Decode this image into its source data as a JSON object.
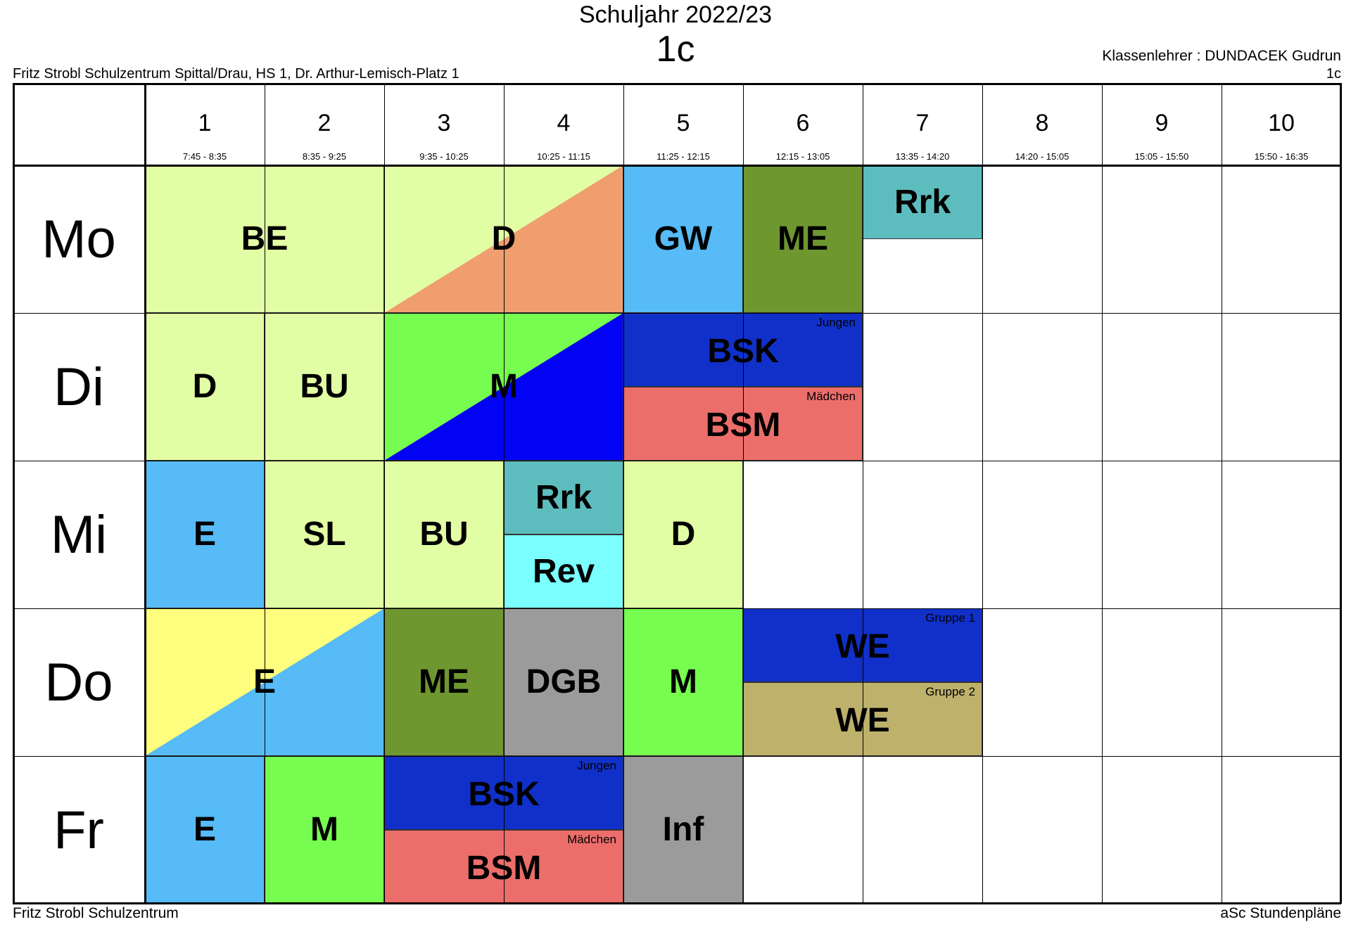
{
  "header": {
    "year": "Schuljahr 2022/23",
    "class_name": "1c",
    "school_address": "Fritz Strobl Schulzentrum Spittal/Drau, HS 1, Dr. Arthur-Lemisch-Platz 1",
    "teacher": "Klassenlehrer : DUNDACEK Gudrun",
    "class_right": "1c"
  },
  "footer": {
    "left": "Fritz Strobl Schulzentrum",
    "right": "aSc Stundenpläne"
  },
  "periods": [
    {
      "num": "1",
      "time": "7:45 - 8:35"
    },
    {
      "num": "2",
      "time": "8:35 - 9:25"
    },
    {
      "num": "3",
      "time": "9:35 - 10:25"
    },
    {
      "num": "4",
      "time": "10:25 - 11:15"
    },
    {
      "num": "5",
      "time": "11:25 - 12:15"
    },
    {
      "num": "6",
      "time": "12:15 - 13:05"
    },
    {
      "num": "7",
      "time": "13:35 - 14:20"
    },
    {
      "num": "8",
      "time": "14:20 - 15:05"
    },
    {
      "num": "9",
      "time": "15:05 - 15:50"
    },
    {
      "num": "10",
      "time": "15:50 - 16:35"
    }
  ],
  "days": [
    "Mo",
    "Di",
    "Mi",
    "Do",
    "Fr"
  ],
  "colors": {
    "lime": "#e2fea4",
    "orange": "#f09e6e",
    "sky": "#56bbf6",
    "olive": "#6f972f",
    "teal": "#5dbdbe",
    "green": "#77fd4f",
    "blue": "#0202f4",
    "navy": "#1030c9",
    "salmon": "#ec6e6b",
    "cyan": "#7afefe",
    "yellow": "#feff7e",
    "gray": "#9b9b9b",
    "khaki": "#beb16c"
  },
  "lessons": [
    {
      "day": 0,
      "start": 0,
      "span": 2,
      "half": "full",
      "subject": "BE",
      "color": "lime"
    },
    {
      "day": 0,
      "start": 2,
      "span": 2,
      "half": "full",
      "subject": "D",
      "color": "lime",
      "color2": "orange"
    },
    {
      "day": 0,
      "start": 4,
      "span": 1,
      "half": "full",
      "subject": "GW",
      "color": "sky"
    },
    {
      "day": 0,
      "start": 5,
      "span": 1,
      "half": "full",
      "subject": "ME",
      "color": "olive"
    },
    {
      "day": 0,
      "start": 6,
      "span": 1,
      "half": "top",
      "subject": "Rrk",
      "color": "teal"
    },
    {
      "day": 1,
      "start": 0,
      "span": 1,
      "half": "full",
      "subject": "D",
      "color": "lime"
    },
    {
      "day": 1,
      "start": 1,
      "span": 1,
      "half": "full",
      "subject": "BU",
      "color": "lime"
    },
    {
      "day": 1,
      "start": 2,
      "span": 2,
      "half": "full",
      "subject": "M",
      "color": "green",
      "color2": "blue"
    },
    {
      "day": 1,
      "start": 4,
      "span": 2,
      "half": "top",
      "subject": "BSK",
      "color": "navy",
      "group": "Jungen"
    },
    {
      "day": 1,
      "start": 4,
      "span": 2,
      "half": "bottom",
      "subject": "BSM",
      "color": "salmon",
      "group": "Mädchen"
    },
    {
      "day": 2,
      "start": 0,
      "span": 1,
      "half": "full",
      "subject": "E",
      "color": "sky"
    },
    {
      "day": 2,
      "start": 1,
      "span": 1,
      "half": "full",
      "subject": "SL",
      "color": "lime"
    },
    {
      "day": 2,
      "start": 2,
      "span": 1,
      "half": "full",
      "subject": "BU",
      "color": "lime"
    },
    {
      "day": 2,
      "start": 3,
      "span": 1,
      "half": "top",
      "subject": "Rrk",
      "color": "teal"
    },
    {
      "day": 2,
      "start": 3,
      "span": 1,
      "half": "bottom",
      "subject": "Rev",
      "color": "cyan"
    },
    {
      "day": 2,
      "start": 4,
      "span": 1,
      "half": "full",
      "subject": "D",
      "color": "lime"
    },
    {
      "day": 3,
      "start": 0,
      "span": 2,
      "half": "full",
      "subject": "E",
      "color": "yellow",
      "color2": "sky"
    },
    {
      "day": 3,
      "start": 2,
      "span": 1,
      "half": "full",
      "subject": "ME",
      "color": "olive"
    },
    {
      "day": 3,
      "start": 3,
      "span": 1,
      "half": "full",
      "subject": "DGB",
      "color": "gray"
    },
    {
      "day": 3,
      "start": 4,
      "span": 1,
      "half": "full",
      "subject": "M",
      "color": "green"
    },
    {
      "day": 3,
      "start": 5,
      "span": 2,
      "half": "top",
      "subject": "WE",
      "color": "navy",
      "group": "Gruppe 1"
    },
    {
      "day": 3,
      "start": 5,
      "span": 2,
      "half": "bottom",
      "subject": "WE",
      "color": "khaki",
      "group": "Gruppe 2"
    },
    {
      "day": 4,
      "start": 0,
      "span": 1,
      "half": "full",
      "subject": "E",
      "color": "sky"
    },
    {
      "day": 4,
      "start": 1,
      "span": 1,
      "half": "full",
      "subject": "M",
      "color": "green"
    },
    {
      "day": 4,
      "start": 2,
      "span": 2,
      "half": "top",
      "subject": "BSK",
      "color": "navy",
      "group": "Jungen"
    },
    {
      "day": 4,
      "start": 2,
      "span": 2,
      "half": "bottom",
      "subject": "BSM",
      "color": "salmon",
      "group": "Mädchen"
    },
    {
      "day": 4,
      "start": 4,
      "span": 1,
      "half": "full",
      "subject": "Inf",
      "color": "gray"
    }
  ]
}
